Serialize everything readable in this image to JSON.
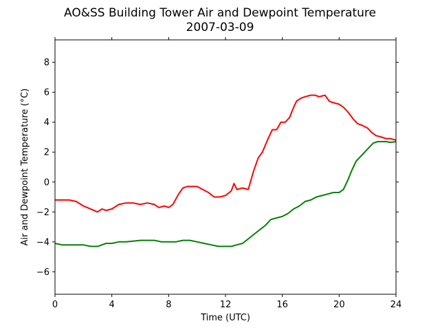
{
  "chart_data": {
    "type": "line",
    "title": "AO&SS Building Tower Air and Dewpoint Temperature",
    "subtitle": "2007-03-09",
    "xlabel": "Time (UTC)",
    "ylabel": "Air and Dewpoint Temperature (°C)",
    "xlim": [
      0,
      24
    ],
    "ylim": [
      -7.5,
      9.5
    ],
    "xticks": [
      0,
      4,
      8,
      12,
      16,
      20,
      24
    ],
    "yticks": [
      -6,
      -4,
      -2,
      0,
      2,
      4,
      6,
      8
    ],
    "grid": false,
    "legend": "none",
    "series": [
      {
        "color": "#ff0000",
        "x": [
          0,
          0.5,
          1,
          1.5,
          2,
          2.5,
          3,
          3.3,
          3.6,
          4,
          4.5,
          5,
          5.5,
          6,
          6.5,
          7,
          7.3,
          7.7,
          8,
          8.3,
          8.7,
          9,
          9.3,
          9.6,
          10,
          10.4,
          10.8,
          11.2,
          11.6,
          12,
          12.4,
          12.6,
          12.8,
          13.2,
          13.6,
          14,
          14.3,
          14.6,
          15,
          15.3,
          15.6,
          15.9,
          16.2,
          16.5,
          16.8,
          17,
          17.3,
          17.6,
          18,
          18.3,
          18.6,
          19,
          19.3,
          19.6,
          20,
          20.3,
          20.6,
          21,
          21.3,
          21.6,
          22,
          22.3,
          22.6,
          23,
          23.3,
          23.6,
          24
        ],
        "values": [
          -1.2,
          -1.2,
          -1.2,
          -1.3,
          -1.6,
          -1.8,
          -2.0,
          -1.8,
          -1.9,
          -1.8,
          -1.5,
          -1.4,
          -1.4,
          -1.5,
          -1.4,
          -1.5,
          -1.7,
          -1.6,
          -1.7,
          -1.5,
          -0.8,
          -0.4,
          -0.3,
          -0.3,
          -0.3,
          -0.5,
          -0.7,
          -1.0,
          -1.0,
          -0.9,
          -0.6,
          -0.1,
          -0.5,
          -0.4,
          -0.5,
          0.8,
          1.6,
          2.0,
          2.9,
          3.5,
          3.5,
          4.0,
          4.0,
          4.3,
          5.0,
          5.4,
          5.6,
          5.7,
          5.8,
          5.8,
          5.7,
          5.8,
          5.4,
          5.3,
          5.2,
          5.0,
          4.7,
          4.2,
          3.9,
          3.8,
          3.6,
          3.3,
          3.1,
          3.0,
          2.9,
          2.9,
          2.8
        ]
      },
      {
        "color": "#008000",
        "x": [
          0,
          0.5,
          1,
          1.5,
          2,
          2.5,
          3,
          3.3,
          3.6,
          4,
          4.5,
          5,
          5.5,
          6,
          6.5,
          7,
          7.5,
          8,
          8.5,
          9,
          9.5,
          10,
          10.5,
          11,
          11.5,
          12,
          12.4,
          12.8,
          13.2,
          13.6,
          14,
          14.4,
          14.8,
          15.2,
          15.6,
          16,
          16.4,
          16.8,
          17.2,
          17.6,
          18,
          18.4,
          18.8,
          19.2,
          19.6,
          20,
          20.3,
          20.6,
          20.9,
          21.2,
          21.5,
          21.8,
          22.1,
          22.4,
          22.7,
          23,
          23.3,
          23.6,
          24
        ],
        "values": [
          -4.1,
          -4.2,
          -4.2,
          -4.2,
          -4.2,
          -4.3,
          -4.3,
          -4.2,
          -4.1,
          -4.1,
          -4.0,
          -4.0,
          -3.95,
          -3.9,
          -3.9,
          -3.9,
          -4.0,
          -4.0,
          -4.0,
          -3.9,
          -3.9,
          -4.0,
          -4.1,
          -4.2,
          -4.3,
          -4.3,
          -4.3,
          -4.2,
          -4.1,
          -3.8,
          -3.5,
          -3.2,
          -2.9,
          -2.5,
          -2.4,
          -2.3,
          -2.1,
          -1.8,
          -1.6,
          -1.3,
          -1.2,
          -1.0,
          -0.9,
          -0.8,
          -0.7,
          -0.7,
          -0.5,
          0.1,
          0.8,
          1.4,
          1.7,
          2.0,
          2.3,
          2.6,
          2.7,
          2.7,
          2.7,
          2.65,
          2.7
        ]
      }
    ]
  }
}
